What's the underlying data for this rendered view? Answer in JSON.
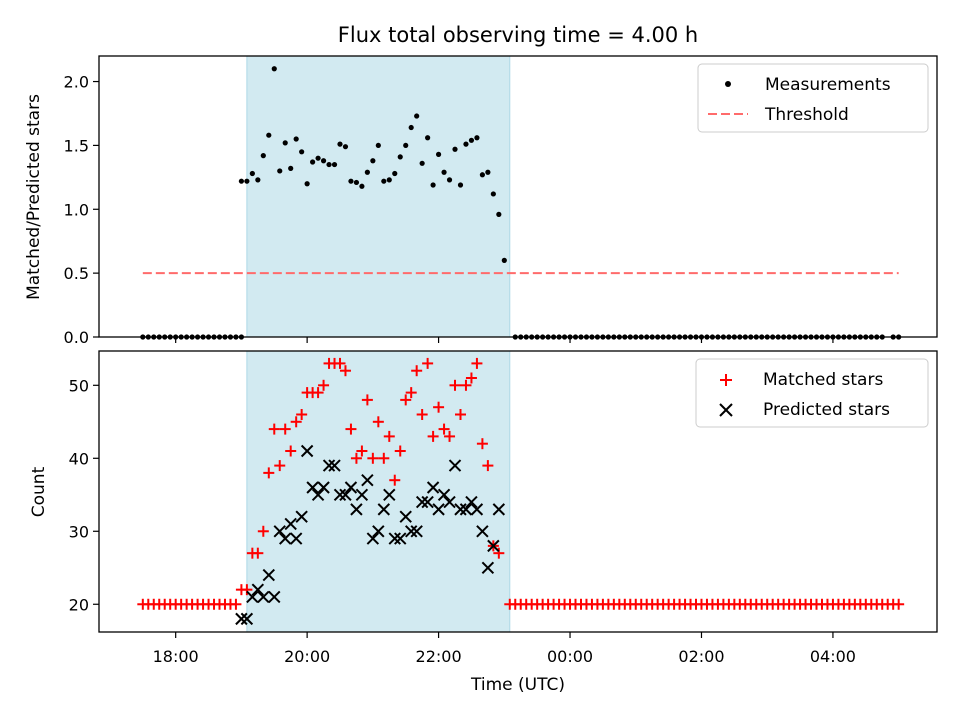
{
  "title": "Flux total observing time = 4.00 h",
  "colors": {
    "measurement": "#000000",
    "threshold": "#ff6b6b",
    "matched": "#ff0000",
    "predicted": "#000000",
    "observing_window": "#add8e6"
  },
  "chart_data": [
    {
      "type": "scatter",
      "name": "top",
      "ylabel": "Matched/Predicted stars",
      "xlabel": "",
      "ylim": [
        0,
        2.2
      ],
      "yticks": [
        "0.0",
        "0.5",
        "1.0",
        "1.5",
        "2.0"
      ],
      "ytick_values": [
        0,
        0.5,
        1.0,
        1.5,
        2.0
      ],
      "xticks_visible": false,
      "legend_position": "top-right",
      "observing_window": [
        "19:05",
        "23:05"
      ],
      "threshold": {
        "name": "Threshold",
        "value": 0.5,
        "x_range": [
          "17:30",
          "05:00"
        ],
        "style": "dashed"
      },
      "series": [
        {
          "name": "Measurements",
          "marker": "dot",
          "segments": [
            {
              "x_range": [
                "17:30",
                "19:00"
              ],
              "step_min": 5,
              "y": 0.0
            },
            {
              "x_range": [
                "23:10",
                "04:45"
              ],
              "step_min": 5,
              "y": 0.0
            },
            {
              "x_range": [
                "04:55",
                "05:00"
              ],
              "step_min": 5,
              "y": 0.0
            }
          ],
          "points": [
            [
              "19:00",
              1.22
            ],
            [
              "19:05",
              1.22
            ],
            [
              "19:10",
              1.28
            ],
            [
              "19:15",
              1.23
            ],
            [
              "19:20",
              1.42
            ],
            [
              "19:25",
              1.58
            ],
            [
              "19:30",
              2.1
            ],
            [
              "19:35",
              1.3
            ],
            [
              "19:40",
              1.52
            ],
            [
              "19:45",
              1.32
            ],
            [
              "19:50",
              1.55
            ],
            [
              "19:55",
              1.45
            ],
            [
              "20:00",
              1.2
            ],
            [
              "20:05",
              1.37
            ],
            [
              "20:10",
              1.4
            ],
            [
              "20:15",
              1.38
            ],
            [
              "20:20",
              1.35
            ],
            [
              "20:25",
              1.35
            ],
            [
              "20:30",
              1.51
            ],
            [
              "20:35",
              1.49
            ],
            [
              "20:40",
              1.22
            ],
            [
              "20:45",
              1.21
            ],
            [
              "20:50",
              1.18
            ],
            [
              "20:55",
              1.29
            ],
            [
              "21:00",
              1.38
            ],
            [
              "21:05",
              1.5
            ],
            [
              "21:10",
              1.22
            ],
            [
              "21:15",
              1.23
            ],
            [
              "21:20",
              1.28
            ],
            [
              "21:25",
              1.41
            ],
            [
              "21:30",
              1.5
            ],
            [
              "21:35",
              1.64
            ],
            [
              "21:40",
              1.73
            ],
            [
              "21:45",
              1.36
            ],
            [
              "21:50",
              1.56
            ],
            [
              "21:55",
              1.19
            ],
            [
              "22:00",
              1.43
            ],
            [
              "22:05",
              1.29
            ],
            [
              "22:10",
              1.23
            ],
            [
              "22:15",
              1.47
            ],
            [
              "22:20",
              1.19
            ],
            [
              "22:25",
              1.51
            ],
            [
              "22:30",
              1.54
            ],
            [
              "22:35",
              1.56
            ],
            [
              "22:40",
              1.27
            ],
            [
              "22:45",
              1.29
            ],
            [
              "22:50",
              1.12
            ],
            [
              "22:55",
              0.96
            ],
            [
              "23:00",
              0.6
            ]
          ]
        }
      ]
    },
    {
      "type": "scatter",
      "name": "bottom",
      "ylabel": "Count",
      "xlabel": "Time (UTC)",
      "ylim": [
        16.2,
        54.7
      ],
      "yticks": [
        "20",
        "30",
        "40",
        "50"
      ],
      "ytick_values": [
        20,
        30,
        40,
        50
      ],
      "xlim": [
        "16:50",
        "05:35"
      ],
      "xticks": [
        "18:00",
        "20:00",
        "22:00",
        "00:00",
        "02:00",
        "04:00"
      ],
      "legend_position": "top-right",
      "observing_window": [
        "19:05",
        "23:05"
      ],
      "series": [
        {
          "name": "Matched stars",
          "marker": "plus",
          "segments": [
            {
              "x_range": [
                "17:30",
                "18:55"
              ],
              "step_min": 5,
              "y": 20
            },
            {
              "x_range": [
                "23:05",
                "05:00"
              ],
              "step_min": 5,
              "y": 20
            }
          ],
          "points": [
            [
              "19:00",
              22
            ],
            [
              "19:05",
              22
            ],
            [
              "19:10",
              27
            ],
            [
              "19:15",
              27
            ],
            [
              "19:20",
              30
            ],
            [
              "19:25",
              38
            ],
            [
              "19:30",
              44
            ],
            [
              "19:35",
              39
            ],
            [
              "19:40",
              44
            ],
            [
              "19:45",
              41
            ],
            [
              "19:50",
              45
            ],
            [
              "19:55",
              46
            ],
            [
              "20:00",
              49
            ],
            [
              "20:05",
              49
            ],
            [
              "20:10",
              49
            ],
            [
              "20:15",
              50
            ],
            [
              "20:20",
              53
            ],
            [
              "20:25",
              53
            ],
            [
              "20:30",
              53
            ],
            [
              "20:35",
              52
            ],
            [
              "20:40",
              44
            ],
            [
              "20:45",
              40
            ],
            [
              "20:50",
              41
            ],
            [
              "20:55",
              48
            ],
            [
              "21:00",
              40
            ],
            [
              "21:05",
              45
            ],
            [
              "21:10",
              40
            ],
            [
              "21:15",
              43
            ],
            [
              "21:20",
              37
            ],
            [
              "21:25",
              41
            ],
            [
              "21:30",
              48
            ],
            [
              "21:35",
              49
            ],
            [
              "21:40",
              52
            ],
            [
              "21:45",
              46
            ],
            [
              "21:50",
              53
            ],
            [
              "21:55",
              43
            ],
            [
              "22:00",
              47
            ],
            [
              "22:05",
              44
            ],
            [
              "22:10",
              43
            ],
            [
              "22:15",
              50
            ],
            [
              "22:20",
              46
            ],
            [
              "22:25",
              50
            ],
            [
              "22:30",
              51
            ],
            [
              "22:35",
              53
            ],
            [
              "22:40",
              42
            ],
            [
              "22:45",
              39
            ],
            [
              "22:50",
              28
            ],
            [
              "22:55",
              27
            ]
          ]
        },
        {
          "name": "Predicted stars",
          "marker": "x",
          "points": [
            [
              "19:00",
              18
            ],
            [
              "19:05",
              18
            ],
            [
              "19:10",
              21
            ],
            [
              "19:15",
              22
            ],
            [
              "19:20",
              21
            ],
            [
              "19:25",
              24
            ],
            [
              "19:30",
              21
            ],
            [
              "19:35",
              30
            ],
            [
              "19:40",
              29
            ],
            [
              "19:45",
              31
            ],
            [
              "19:50",
              29
            ],
            [
              "19:55",
              32
            ],
            [
              "20:00",
              41
            ],
            [
              "20:05",
              36
            ],
            [
              "20:10",
              35
            ],
            [
              "20:15",
              36
            ],
            [
              "20:20",
              39
            ],
            [
              "20:25",
              39
            ],
            [
              "20:30",
              35
            ],
            [
              "20:35",
              35
            ],
            [
              "20:40",
              36
            ],
            [
              "20:45",
              33
            ],
            [
              "20:50",
              35
            ],
            [
              "20:55",
              37
            ],
            [
              "21:00",
              29
            ],
            [
              "21:05",
              30
            ],
            [
              "21:10",
              33
            ],
            [
              "21:15",
              35
            ],
            [
              "21:20",
              29
            ],
            [
              "21:25",
              29
            ],
            [
              "21:30",
              32
            ],
            [
              "21:35",
              30
            ],
            [
              "21:40",
              30
            ],
            [
              "21:45",
              34
            ],
            [
              "21:50",
              34
            ],
            [
              "21:55",
              36
            ],
            [
              "22:00",
              33
            ],
            [
              "22:05",
              35
            ],
            [
              "22:10",
              34
            ],
            [
              "22:15",
              39
            ],
            [
              "22:20",
              33
            ],
            [
              "22:25",
              33
            ],
            [
              "22:30",
              34
            ],
            [
              "22:35",
              33
            ],
            [
              "22:40",
              30
            ],
            [
              "22:45",
              25
            ],
            [
              "22:50",
              28
            ],
            [
              "22:55",
              33
            ]
          ]
        }
      ]
    }
  ]
}
